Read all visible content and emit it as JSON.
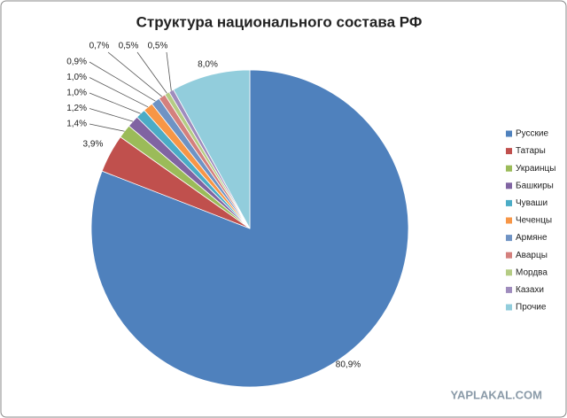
{
  "chart_data": {
    "type": "pie",
    "title": "Структура национального состава РФ",
    "categories": [
      "Русские",
      "Татары",
      "Украинцы",
      "Башкиры",
      "Чуваши",
      "Чеченцы",
      "Армяне",
      "Аварцы",
      "Мордва",
      "Казахи",
      "Прочие"
    ],
    "values": [
      80.9,
      3.9,
      1.4,
      1.2,
      1.0,
      1.0,
      0.9,
      0.7,
      0.5,
      0.5,
      8.0
    ],
    "value_labels": [
      "80,9%",
      "3,9%",
      "1,4%",
      "1,2%",
      "1,0%",
      "1,0%",
      "0,9%",
      "0,7%",
      "0,5%",
      "0,5%",
      "8,0%"
    ],
    "colors": [
      "#4f81bd",
      "#c0504d",
      "#9bbb59",
      "#8064a2",
      "#4bacc6",
      "#f79646",
      "#6f93c4",
      "#d4807d",
      "#b5cc84",
      "#9f8cbd",
      "#92cddc"
    ],
    "legend": "right",
    "watermark": "YAPLAKAL.COM"
  }
}
